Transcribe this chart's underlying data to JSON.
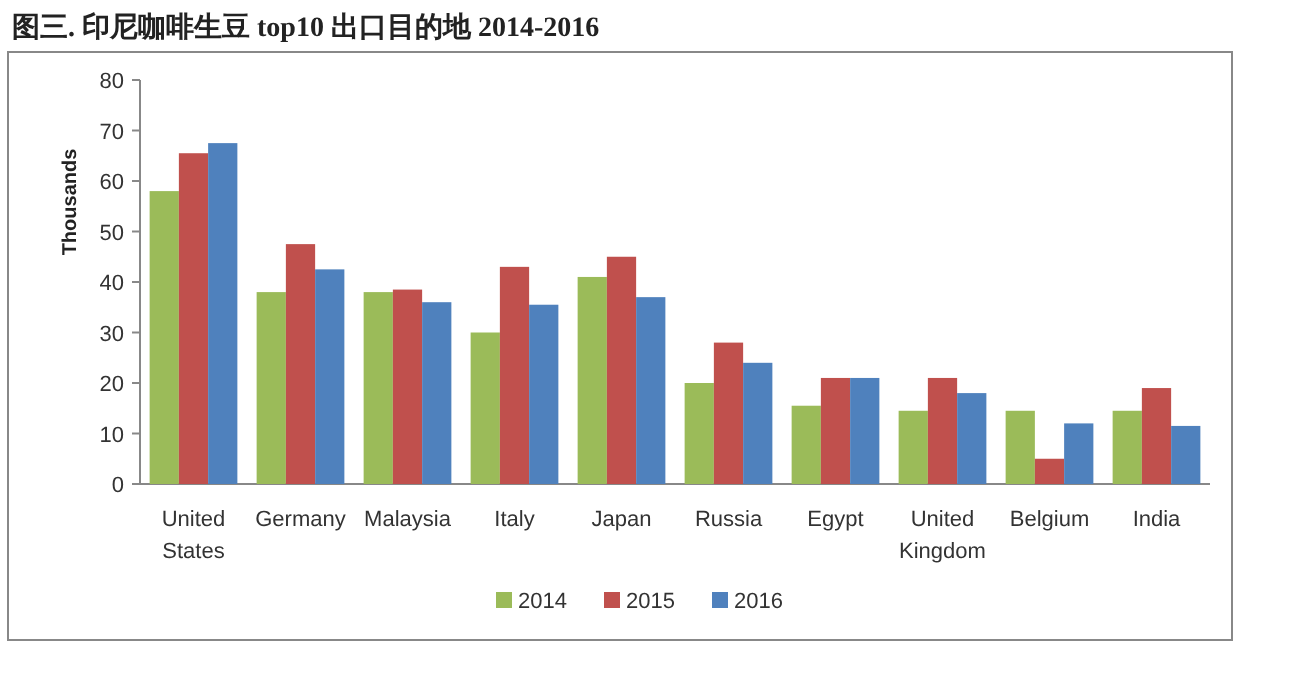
{
  "chart_data": {
    "type": "bar",
    "title": "图三. 印尼咖啡生豆 top10 出口目的地  2014-2016",
    "ylabel": "Thousands",
    "categories": [
      "United States",
      "Germany",
      "Malaysia",
      "Italy",
      "Japan",
      "Russia",
      "Egypt",
      "United Kingdom",
      "Belgium",
      "India"
    ],
    "series": [
      {
        "name": "2014",
        "color": "#9bbb59",
        "values": [
          58,
          38,
          38,
          30,
          41,
          20,
          15.5,
          14.5,
          14.5,
          14.5
        ]
      },
      {
        "name": "2015",
        "color": "#c0504d",
        "values": [
          65.5,
          47.5,
          38.5,
          43,
          45,
          28,
          21,
          21,
          5,
          19
        ]
      },
      {
        "name": "2016",
        "color": "#4f81bd",
        "values": [
          67.5,
          42.5,
          36,
          35.5,
          37,
          24,
          21,
          18,
          12,
          11.5
        ]
      }
    ],
    "ylim": [
      0,
      80
    ],
    "yticks": [
      0,
      10,
      20,
      30,
      40,
      50,
      60,
      70,
      80
    ],
    "grid": false,
    "legend": "bottom"
  }
}
